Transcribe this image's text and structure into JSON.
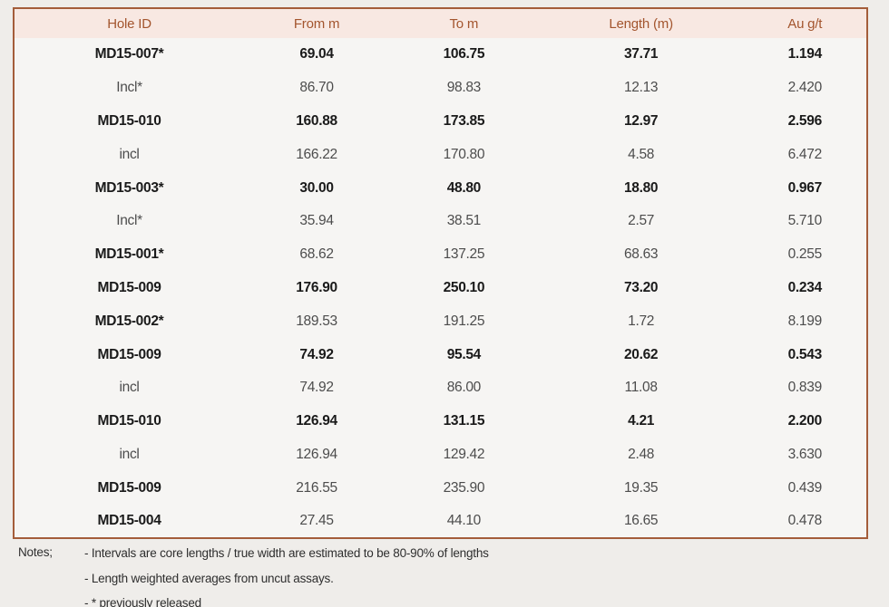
{
  "table": {
    "columns": [
      "Hole ID",
      "From m",
      "To m",
      "Length (m)",
      "Au g/t"
    ],
    "rows": [
      {
        "hole_id": "MD15-007*",
        "from": "69.04",
        "to": "106.75",
        "length": "37.71",
        "au": "1.194",
        "id_bold": true,
        "values_bold": true
      },
      {
        "hole_id": "Incl*",
        "from": "86.70",
        "to": "98.83",
        "length": "12.13",
        "au": "2.420",
        "id_bold": false,
        "values_bold": false
      },
      {
        "hole_id": "MD15-010",
        "from": "160.88",
        "to": "173.85",
        "length": "12.97",
        "au": "2.596",
        "id_bold": true,
        "values_bold": true
      },
      {
        "hole_id": "incl",
        "from": "166.22",
        "to": "170.80",
        "length": "4.58",
        "au": "6.472",
        "id_bold": false,
        "values_bold": false
      },
      {
        "hole_id": "MD15-003*",
        "from": "30.00",
        "to": "48.80",
        "length": "18.80",
        "au": "0.967",
        "id_bold": true,
        "values_bold": true
      },
      {
        "hole_id": "Incl*",
        "from": "35.94",
        "to": "38.51",
        "length": "2.57",
        "au": "5.710",
        "id_bold": false,
        "values_bold": false
      },
      {
        "hole_id": "MD15-001*",
        "from": "68.62",
        "to": "137.25",
        "length": "68.63",
        "au": "0.255",
        "id_bold": true,
        "values_bold": false
      },
      {
        "hole_id": "MD15-009",
        "from": "176.90",
        "to": "250.10",
        "length": "73.20",
        "au": "0.234",
        "id_bold": true,
        "values_bold": true
      },
      {
        "hole_id": "MD15-002*",
        "from": "189.53",
        "to": "191.25",
        "length": "1.72",
        "au": "8.199",
        "id_bold": true,
        "values_bold": false
      },
      {
        "hole_id": "MD15-009",
        "from": "74.92",
        "to": "95.54",
        "length": "20.62",
        "au": "0.543",
        "id_bold": true,
        "values_bold": true
      },
      {
        "hole_id": "incl",
        "from": "74.92",
        "to": "86.00",
        "length": "11.08",
        "au": "0.839",
        "id_bold": false,
        "values_bold": false
      },
      {
        "hole_id": "MD15-010",
        "from": "126.94",
        "to": "131.15",
        "length": "4.21",
        "au": "2.200",
        "id_bold": true,
        "values_bold": true
      },
      {
        "hole_id": "incl",
        "from": "126.94",
        "to": "129.42",
        "length": "2.48",
        "au": "3.630",
        "id_bold": false,
        "values_bold": false
      },
      {
        "hole_id": "MD15-009",
        "from": "216.55",
        "to": "235.90",
        "length": "19.35",
        "au": "0.439",
        "id_bold": true,
        "values_bold": false
      },
      {
        "hole_id": "MD15-004",
        "from": "27.45",
        "to": "44.10",
        "length": "16.65",
        "au": "0.478",
        "id_bold": true,
        "values_bold": false
      }
    ]
  },
  "notes": {
    "label": "Notes;",
    "items": [
      "- Intervals are core lengths / true width are estimated to be 80-90% of lengths",
      "- Length weighted averages from uncut assays.",
      "- * previously released"
    ]
  },
  "colors": {
    "page_background": "#efedea",
    "table_background": "#f6f5f3",
    "header_background": "#f8e8e2",
    "header_text": "#a3552e",
    "table_border": "#a45d3a",
    "value_bold_text": "#1a1a1a",
    "value_regular_text": "#4c4c4c",
    "notes_text": "#2e2e2e"
  },
  "chart_data": {
    "type": "table",
    "title": "",
    "columns": [
      "Hole ID",
      "From m",
      "To m",
      "Length (m)",
      "Au g/t"
    ],
    "rows": [
      [
        "MD15-007*",
        69.04,
        106.75,
        37.71,
        1.194
      ],
      [
        "Incl*",
        86.7,
        98.83,
        12.13,
        2.42
      ],
      [
        "MD15-010",
        160.88,
        173.85,
        12.97,
        2.596
      ],
      [
        "incl",
        166.22,
        170.8,
        4.58,
        6.472
      ],
      [
        "MD15-003*",
        30.0,
        48.8,
        18.8,
        0.967
      ],
      [
        "Incl*",
        35.94,
        38.51,
        2.57,
        5.71
      ],
      [
        "MD15-001*",
        68.62,
        137.25,
        68.63,
        0.255
      ],
      [
        "MD15-009",
        176.9,
        250.1,
        73.2,
        0.234
      ],
      [
        "MD15-002*",
        189.53,
        191.25,
        1.72,
        8.199
      ],
      [
        "MD15-009",
        74.92,
        95.54,
        20.62,
        0.543
      ],
      [
        "incl",
        74.92,
        86.0,
        11.08,
        0.839
      ],
      [
        "MD15-010",
        126.94,
        131.15,
        4.21,
        2.2
      ],
      [
        "incl",
        126.94,
        129.42,
        2.48,
        3.63
      ],
      [
        "MD15-009",
        216.55,
        235.9,
        19.35,
        0.439
      ],
      [
        "MD15-004",
        27.45,
        44.1,
        16.65,
        0.478
      ]
    ]
  }
}
